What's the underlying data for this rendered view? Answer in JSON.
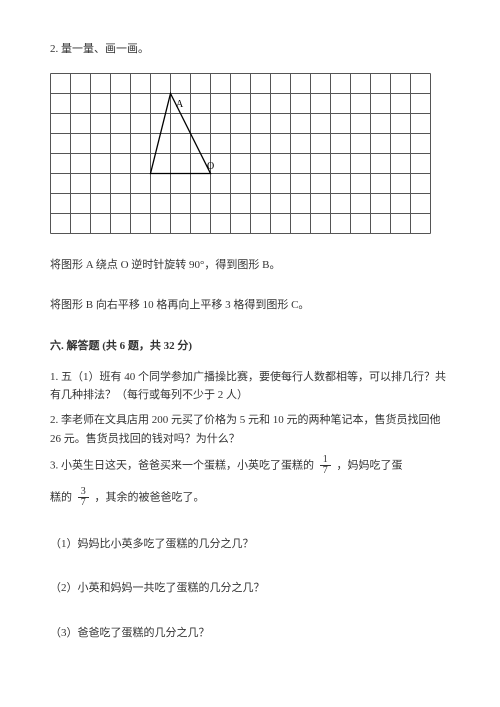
{
  "top_q": "2. 量一量、画一画。",
  "grid": {
    "cols": 19,
    "rows": 8,
    "cell": 20,
    "stroke": "#555555",
    "triangle": {
      "A": [
        6,
        1
      ],
      "O": [
        8,
        5
      ],
      "V3": [
        5,
        5
      ]
    },
    "labelA": "A",
    "labelO": "O",
    "label_fontsize": 10
  },
  "instr1": "将图形 A 绕点 O 逆时针旋转 90°，得到图形 B。",
  "instr2": "将图形 B 向右平移 10 格再向上平移 3 格得到图形 C。",
  "section6_title": "六. 解答题 (共 6 题，共 32 分)",
  "q1": "1. 五（1）班有 40 个同学参加广播操比赛，要使每行人数都相等，可以排几行？共有几种排法？（每行或每列不少于 2 人）",
  "q2": "2. 李老师在文具店用 200 元买了价格为 5 元和 10 元的两种笔记本，售货员找回他 26 元。售货员找回的钱对吗？为什么？",
  "q3_a": "3. 小英生日这天，爸爸买来一个蛋糕，小英吃了蛋糕的",
  "q3_b": "，妈妈吃了蛋",
  "q3_c": "糕的",
  "q3_d": "，其余的被爸爸吃了。",
  "frac1": {
    "num": "1",
    "den": "7"
  },
  "frac2": {
    "num": "3",
    "den": "7"
  },
  "sub1": "（1）妈妈比小英多吃了蛋糕的几分之几？",
  "sub2": "（2）小英和妈妈一共吃了蛋糕的几分之几？",
  "sub3": "（3）爸爸吃了蛋糕的几分之几？"
}
